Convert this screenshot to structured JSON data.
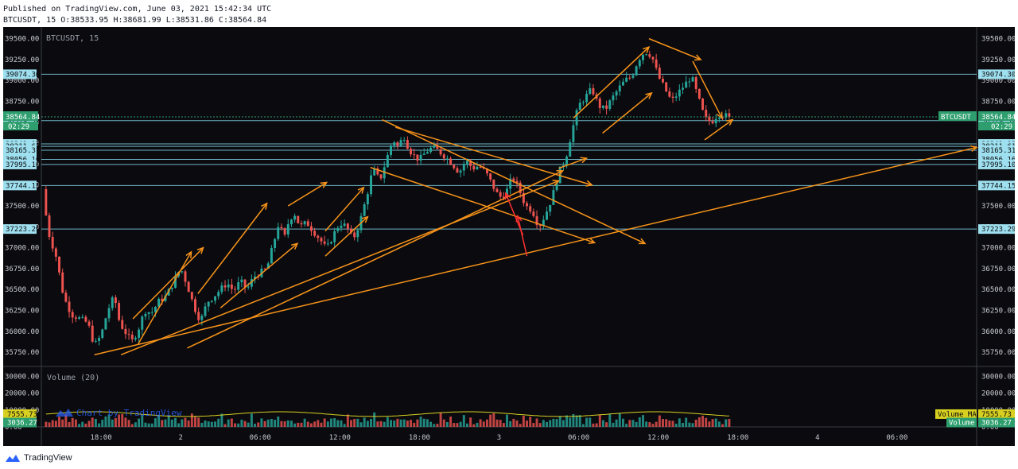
{
  "header": {
    "published": "Published on TradingView.com, June 03, 2021 15:42:34 UTC",
    "ohlc": "BTCUSDT, 15 O:38533.95 H:38681.99 L:38531.86 C:38564.84"
  },
  "footer": {
    "brand": "TradingView",
    "logo_icon": "tradingview-cloud-icon"
  },
  "colors": {
    "background": "#0b0b0f",
    "up": "#26a69a",
    "down": "#ef5350",
    "drawing": "#f7931a",
    "level": "#7fd3e6",
    "accent": "#1aa05a",
    "volume_ma": "#d8d020",
    "current_box": "#2e9e6e"
  },
  "chart_data": {
    "type": "candlestick",
    "symbol_label": "BTCUSDT, 15",
    "x_tick_labels": [
      "18:00",
      "2",
      "06:00",
      "12:00",
      "18:00",
      "3",
      "06:00",
      "12:00",
      "18:00",
      "4",
      "06:00"
    ],
    "x_tick_times": [
      -6,
      0,
      6,
      12,
      18,
      24,
      30,
      36,
      42,
      48,
      54
    ],
    "xlim": [
      -10.5,
      60
    ],
    "price_axis": {
      "ticks": [
        35750,
        36000,
        36250,
        36500,
        36750,
        37000,
        37250,
        37500,
        37750,
        38000,
        38250,
        38500,
        38750,
        39000,
        39250,
        39500
      ],
      "tick_labels": [
        "35750.00",
        "36000.00",
        "36250.00",
        "36500.00",
        "36750.00",
        "37000.00",
        "37250.00",
        "37500.00",
        "37750.00",
        "38000.00",
        "38250.00",
        "38500.00",
        "38750.00",
        "39000.00",
        "39250.00",
        "39500.00"
      ],
      "ylim": [
        35580,
        39620
      ]
    },
    "levels": [
      {
        "price": 39074.3,
        "label": "39074.30"
      },
      {
        "price": 38519.59,
        "label": "38519.59"
      },
      {
        "price": 38241.13,
        "label": "38241.13"
      },
      {
        "price": 38211.61,
        "label": "38211.61"
      },
      {
        "price": 38165.31,
        "label": "38165.31"
      },
      {
        "price": 38056.16,
        "label": "38056.16"
      },
      {
        "price": 37995.1,
        "label": "37995.10"
      },
      {
        "price": 37744.15,
        "label": "37744.15"
      },
      {
        "price": 37223.29,
        "label": "37223.29"
      }
    ],
    "current_price": {
      "price": 38564.84,
      "label": "38564.84",
      "symbol_tag": "BTCUSDT",
      "countdown": "02:29"
    },
    "price_path": [
      [
        -10.4,
        37700
      ],
      [
        -10,
        37200
      ],
      [
        -9.4,
        36900
      ],
      [
        -8.8,
        36400
      ],
      [
        -8.2,
        36200
      ],
      [
        -7.6,
        36150
      ],
      [
        -7,
        36100
      ],
      [
        -6.5,
        35830
      ],
      [
        -6,
        35950
      ],
      [
        -5.5,
        36250
      ],
      [
        -5,
        36420
      ],
      [
        -4.6,
        36100
      ],
      [
        -4.2,
        36000
      ],
      [
        -3.7,
        35870
      ],
      [
        -3.2,
        36020
      ],
      [
        -2.7,
        36250
      ],
      [
        -2.2,
        36220
      ],
      [
        -1.6,
        36370
      ],
      [
        -1.1,
        36420
      ],
      [
        -0.5,
        36600
      ],
      [
        0,
        36760
      ],
      [
        0.5,
        36550
      ],
      [
        1,
        36300
      ],
      [
        1.5,
        36120
      ],
      [
        2,
        36350
      ],
      [
        2.5,
        36420
      ],
      [
        3,
        36500
      ],
      [
        3.5,
        36580
      ],
      [
        4,
        36480
      ],
      [
        4.5,
        36600
      ],
      [
        5,
        36500
      ],
      [
        5.5,
        36650
      ],
      [
        6,
        36700
      ],
      [
        6.5,
        36750
      ],
      [
        7,
        37050
      ],
      [
        7.4,
        37300
      ],
      [
        7.8,
        37100
      ],
      [
        8.2,
        37350
      ],
      [
        8.6,
        37400
      ],
      [
        9,
        37250
      ],
      [
        9.5,
        37300
      ],
      [
        10,
        37200
      ],
      [
        10.5,
        37100
      ],
      [
        11,
        36980
      ],
      [
        11.5,
        37150
      ],
      [
        12,
        37300
      ],
      [
        12.5,
        37250
      ],
      [
        13,
        37100
      ],
      [
        13.5,
        37300
      ],
      [
        14,
        37600
      ],
      [
        14.5,
        37950
      ],
      [
        15,
        37800
      ],
      [
        15.5,
        38050
      ],
      [
        16,
        38300
      ],
      [
        16.4,
        38200
      ],
      [
        16.8,
        38350
      ],
      [
        17.2,
        38180
      ],
      [
        17.6,
        38100
      ],
      [
        18,
        38050
      ],
      [
        18.5,
        38150
      ],
      [
        19,
        38200
      ],
      [
        19.5,
        38150
      ],
      [
        20,
        38080
      ],
      [
        20.5,
        38000
      ],
      [
        21,
        37900
      ],
      [
        21.5,
        38050
      ],
      [
        22,
        37950
      ],
      [
        22.5,
        37980
      ],
      [
        23,
        37900
      ],
      [
        23.5,
        37750
      ],
      [
        24,
        37600
      ],
      [
        24.5,
        37650
      ],
      [
        25,
        37850
      ],
      [
        25.5,
        37700
      ],
      [
        26,
        37500
      ],
      [
        26.5,
        37450
      ],
      [
        27,
        37250
      ],
      [
        27.5,
        37400
      ],
      [
        28,
        37600
      ],
      [
        28.5,
        37900
      ],
      [
        29,
        38050
      ],
      [
        29.5,
        38400
      ],
      [
        30,
        38700
      ],
      [
        30.5,
        38800
      ],
      [
        31,
        38900
      ],
      [
        31.5,
        38700
      ],
      [
        32,
        38650
      ],
      [
        32.5,
        38780
      ],
      [
        33,
        38900
      ],
      [
        33.5,
        39000
      ],
      [
        34,
        39050
      ],
      [
        34.5,
        39250
      ],
      [
        35,
        39350
      ],
      [
        35.5,
        39300
      ],
      [
        36,
        39050
      ],
      [
        36.5,
        38900
      ],
      [
        37,
        38750
      ],
      [
        37.5,
        38850
      ],
      [
        38,
        38950
      ],
      [
        38.5,
        39050
      ],
      [
        39,
        38800
      ],
      [
        39.5,
        38550
      ],
      [
        40,
        38500
      ],
      [
        40.5,
        38600
      ],
      [
        41,
        38580
      ],
      [
        41.4,
        38564.84
      ]
    ],
    "volume": {
      "title": "Volume (20)",
      "ticks": [
        0,
        10000,
        20000,
        30000
      ],
      "tick_labels": [
        "0.00",
        "10000.00",
        "20000.00",
        "30000.00"
      ],
      "ylim": [
        0,
        32000
      ],
      "volume_ma": {
        "value": 7555.73,
        "label": "7555.73",
        "tag": "Volume MA"
      },
      "current_volume": {
        "value": 3036.27,
        "label": "3036.27",
        "tag": "Volume"
      }
    },
    "watermark": "Chart by TradingView",
    "drawings": [
      {
        "from": [
          -6.5,
          35720
        ],
        "to": [
          60,
          38200
        ],
        "color": "orange"
      },
      {
        "from": [
          -4.5,
          35720
        ],
        "to": [
          28.5,
          37800
        ],
        "color": "orange"
      },
      {
        "from": [
          0.5,
          35800
        ],
        "to": [
          28.8,
          37920
        ],
        "color": "orange"
      },
      {
        "from": [
          15.2,
          38530
        ],
        "to": [
          35.0,
          37050
        ],
        "color": "orange"
      },
      {
        "from": [
          16.2,
          38440
        ],
        "to": [
          31.0,
          37750
        ],
        "color": "orange"
      },
      {
        "from": [
          14.3,
          37960
        ],
        "to": [
          31.2,
          37060
        ],
        "color": "orange"
      },
      {
        "from": [
          -3.2,
          35850
        ],
        "to": [
          0.8,
          36950
        ],
        "color": "orange"
      },
      {
        "from": [
          -3.6,
          36150
        ],
        "to": [
          1.7,
          37000
        ],
        "color": "orange"
      },
      {
        "from": [
          3.0,
          36280
        ],
        "to": [
          8.8,
          37050
        ],
        "color": "orange"
      },
      {
        "from": [
          1.3,
          36450
        ],
        "to": [
          6.5,
          37530
        ],
        "color": "orange"
      },
      {
        "from": [
          8.1,
          37500
        ],
        "to": [
          11.0,
          37780
        ],
        "color": "orange"
      },
      {
        "from": [
          10.9,
          36900
        ],
        "to": [
          14.1,
          37370
        ],
        "color": "orange"
      },
      {
        "from": [
          10.9,
          37200
        ],
        "to": [
          13.8,
          37720
        ],
        "color": "orange"
      },
      {
        "from": [
          29.6,
          38550
        ],
        "to": [
          35.3,
          39400
        ],
        "color": "orange"
      },
      {
        "from": [
          31.8,
          38370
        ],
        "to": [
          35.5,
          38850
        ],
        "color": "orange"
      },
      {
        "from": [
          35.3,
          39500
        ],
        "to": [
          39.2,
          39250
        ],
        "color": "orange"
      },
      {
        "from": [
          38.6,
          39230
        ],
        "to": [
          40.8,
          38550
        ],
        "color": "orange"
      },
      {
        "from": [
          39.5,
          38290
        ],
        "to": [
          41.6,
          38530
        ],
        "color": "orange"
      },
      {
        "from": [
          28.5,
          37950
        ],
        "to": [
          30.6,
          38070
        ],
        "color": "orange"
      },
      {
        "from": [
          25.8,
          37150
        ],
        "to": [
          24.5,
          37650
        ],
        "color": "red"
      },
      {
        "from": [
          26.1,
          36900
        ],
        "to": [
          25.4,
          37380
        ],
        "color": "red"
      }
    ]
  }
}
